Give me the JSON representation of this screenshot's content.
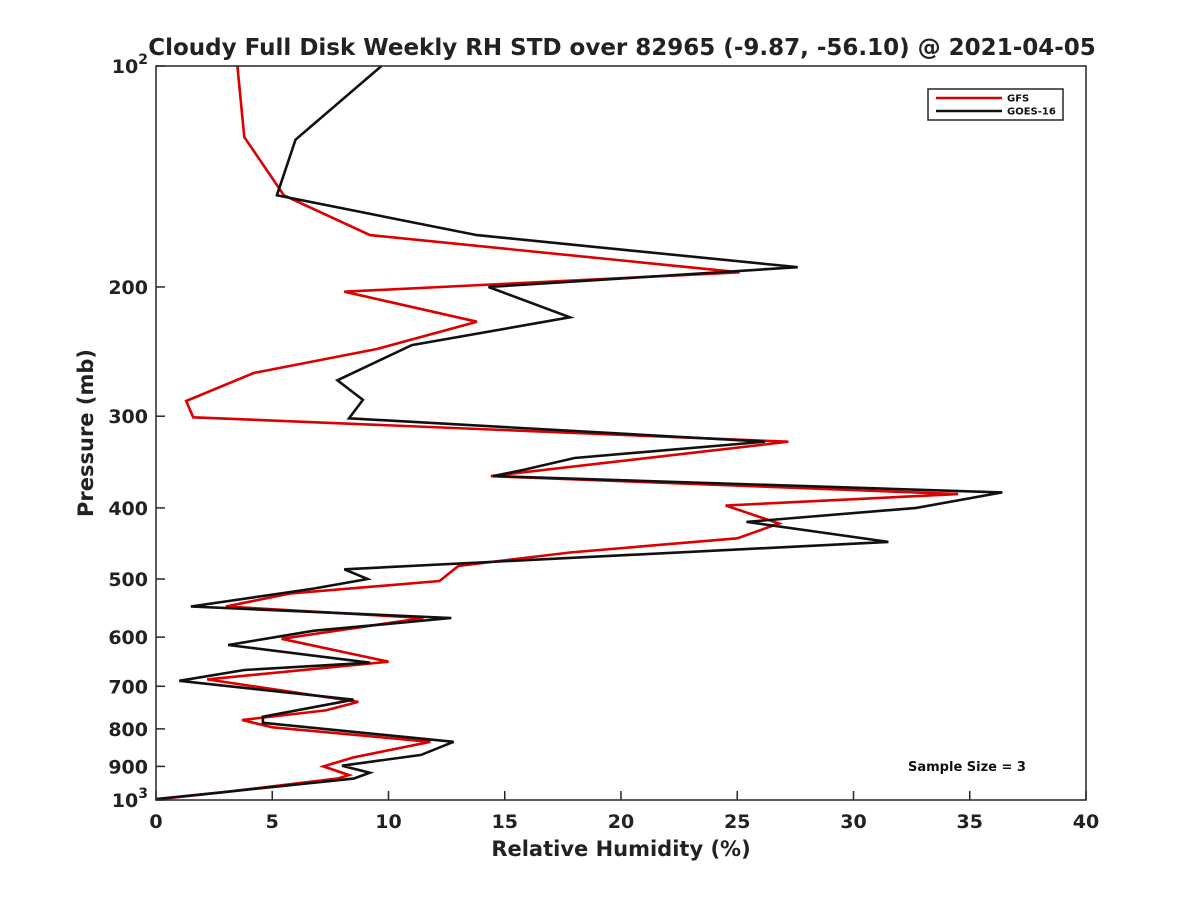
{
  "chart_data": {
    "type": "line",
    "title": "Cloudy Full Disk Weekly RH STD over 82965 (-9.87, -56.10) @ 2021-04-05",
    "xlabel": "Relative Humidity (%)",
    "ylabel": "Pressure (mb)",
    "xlim": [
      0,
      40
    ],
    "ylim": [
      100,
      1000
    ],
    "y_scale": "log",
    "y_reversed": true,
    "grid": false,
    "legend_position": "top-right",
    "x_tick_labels": [
      "0",
      "5",
      "10",
      "15",
      "20",
      "25",
      "30",
      "35",
      "40"
    ],
    "y_tick_labels": [
      {
        "value": 100,
        "base": "10",
        "exp": "2"
      },
      {
        "value": 200,
        "base": "200",
        "exp": ""
      },
      {
        "value": 300,
        "base": "300",
        "exp": ""
      },
      {
        "value": 400,
        "base": "400",
        "exp": ""
      },
      {
        "value": 500,
        "base": "500",
        "exp": ""
      },
      {
        "value": 600,
        "base": "600",
        "exp": ""
      },
      {
        "value": 700,
        "base": "700",
        "exp": ""
      },
      {
        "value": 800,
        "base": "800",
        "exp": ""
      },
      {
        "value": 900,
        "base": "900",
        "exp": ""
      },
      {
        "value": 1000,
        "base": "10",
        "exp": "3"
      }
    ],
    "annotation": "Sample Size = 3",
    "series": [
      {
        "name": "GFS",
        "color": "#dd0000",
        "points": [
          [
            3.5,
            100
          ],
          [
            3.8,
            125
          ],
          [
            5.5,
            150
          ],
          [
            9.2,
            170
          ],
          [
            25.1,
            191
          ],
          [
            8.1,
            203
          ],
          [
            13.8,
            223
          ],
          [
            9.5,
            243
          ],
          [
            4.2,
            262
          ],
          [
            1.3,
            286
          ],
          [
            1.6,
            301
          ],
          [
            27.2,
            325
          ],
          [
            14.4,
            362
          ],
          [
            34.5,
            383
          ],
          [
            24.5,
            397
          ],
          [
            26.8,
            420
          ],
          [
            25.0,
            440
          ],
          [
            17.8,
            460
          ],
          [
            13.0,
            480
          ],
          [
            12.2,
            503
          ],
          [
            5.8,
            523
          ],
          [
            3.0,
            545
          ],
          [
            11.5,
            565
          ],
          [
            5.4,
            603
          ],
          [
            10.0,
            648
          ],
          [
            2.2,
            685
          ],
          [
            8.7,
            735
          ],
          [
            7.3,
            755
          ],
          [
            3.7,
            778
          ],
          [
            5.0,
            796
          ],
          [
            11.8,
            833
          ],
          [
            8.5,
            875
          ],
          [
            7.2,
            900
          ],
          [
            8.3,
            925
          ],
          [
            7.8,
            935
          ],
          [
            3.0,
            975
          ],
          [
            0.0,
            998
          ]
        ]
      },
      {
        "name": "GOES-16",
        "color": "#111111",
        "points": [
          [
            9.7,
            100
          ],
          [
            6.0,
            126
          ],
          [
            5.2,
            150
          ],
          [
            13.8,
            170
          ],
          [
            27.6,
            188
          ],
          [
            14.3,
            200
          ],
          [
            17.8,
            220
          ],
          [
            11.0,
            240
          ],
          [
            7.8,
            268
          ],
          [
            8.9,
            285
          ],
          [
            8.3,
            302
          ],
          [
            26.2,
            325
          ],
          [
            18.0,
            342
          ],
          [
            15.8,
            355
          ],
          [
            14.5,
            362
          ],
          [
            36.4,
            381
          ],
          [
            32.7,
            400
          ],
          [
            25.4,
            418
          ],
          [
            31.5,
            445
          ],
          [
            8.1,
            485
          ],
          [
            9.1,
            500
          ],
          [
            6.8,
            515
          ],
          [
            1.5,
            545
          ],
          [
            12.7,
            565
          ],
          [
            6.8,
            588
          ],
          [
            3.1,
            615
          ],
          [
            9.2,
            650
          ],
          [
            3.8,
            665
          ],
          [
            1.0,
            688
          ],
          [
            8.5,
            730
          ],
          [
            4.6,
            770
          ],
          [
            4.6,
            785
          ],
          [
            12.8,
            833
          ],
          [
            11.4,
            868
          ],
          [
            8.0,
            898
          ],
          [
            9.2,
            918
          ],
          [
            8.5,
            935
          ],
          [
            3.0,
            975
          ],
          [
            0.0,
            997
          ]
        ]
      }
    ]
  }
}
